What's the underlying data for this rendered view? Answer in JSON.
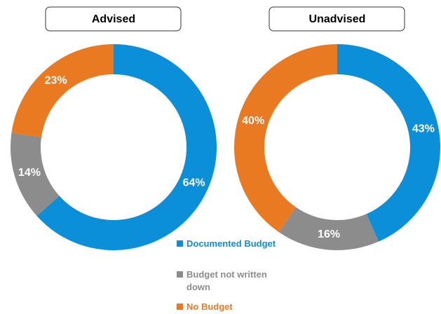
{
  "chart_data": [
    {
      "type": "donut",
      "title": "Advised",
      "values": [
        64,
        14,
        23
      ],
      "value_labels": [
        "64%",
        "14%",
        "23%"
      ]
    },
    {
      "type": "donut",
      "title": "Unadvised",
      "values": [
        43,
        16,
        40
      ],
      "value_labels": [
        "43%",
        "16%",
        "40%"
      ]
    }
  ],
  "legend": [
    {
      "name": "Documented Budget",
      "color": "#0a8fd8"
    },
    {
      "name": "Budget not written down",
      "color": "#8c8c8c"
    },
    {
      "name": "No Budget",
      "color": "#e97a22"
    }
  ]
}
